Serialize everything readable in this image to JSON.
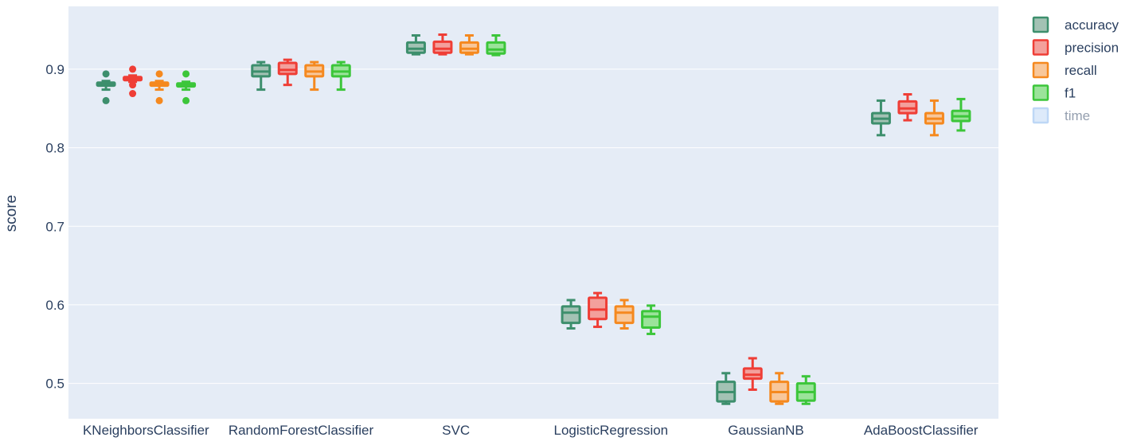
{
  "chart_data": {
    "type": "box",
    "title": "",
    "xlabel": "",
    "ylabel": "score",
    "ylim": [
      0.455,
      0.98
    ],
    "yticks": [
      0.5,
      0.6,
      0.7,
      0.8,
      0.9
    ],
    "ytick_labels": [
      "0.5",
      "0.6",
      "0.7",
      "0.8",
      "0.9"
    ],
    "grid": true,
    "legend_position": "top-right",
    "categories": [
      "KNeighborsClassifier",
      "RandomForestClassifier",
      "SVC",
      "LogisticRegression",
      "GaussianNB",
      "AdaBoostClassifier"
    ],
    "series": [
      {
        "name": "accuracy",
        "color": "#3d8f6d",
        "fill": "#a3c2b4",
        "hidden": false,
        "boxes": [
          {
            "min": 0.874,
            "q1": 0.879,
            "median": 0.881,
            "q3": 0.883,
            "max": 0.885,
            "outliers": [
              0.894,
              0.86
            ]
          },
          {
            "min": 0.874,
            "q1": 0.891,
            "median": 0.897,
            "q3": 0.905,
            "max": 0.909,
            "outliers": []
          },
          {
            "min": 0.919,
            "q1": 0.921,
            "median": 0.926,
            "q3": 0.934,
            "max": 0.943,
            "outliers": []
          },
          {
            "min": 0.57,
            "q1": 0.577,
            "median": 0.59,
            "q3": 0.598,
            "max": 0.606,
            "outliers": []
          },
          {
            "min": 0.474,
            "q1": 0.477,
            "median": 0.489,
            "q3": 0.502,
            "max": 0.513,
            "outliers": []
          },
          {
            "min": 0.816,
            "q1": 0.831,
            "median": 0.837,
            "q3": 0.844,
            "max": 0.86,
            "outliers": []
          }
        ]
      },
      {
        "name": "precision",
        "color": "#ef3e36",
        "fill": "#f3a09c",
        "hidden": false,
        "boxes": [
          {
            "min": 0.884,
            "q1": 0.886,
            "median": 0.888,
            "q3": 0.89,
            "max": 0.892,
            "outliers": [
              0.9,
              0.88,
              0.869
            ]
          },
          {
            "min": 0.88,
            "q1": 0.894,
            "median": 0.899,
            "q3": 0.908,
            "max": 0.912,
            "outliers": []
          },
          {
            "min": 0.919,
            "q1": 0.921,
            "median": 0.926,
            "q3": 0.935,
            "max": 0.944,
            "outliers": []
          },
          {
            "min": 0.572,
            "q1": 0.582,
            "median": 0.594,
            "q3": 0.609,
            "max": 0.615,
            "outliers": []
          },
          {
            "min": 0.492,
            "q1": 0.506,
            "median": 0.511,
            "q3": 0.519,
            "max": 0.532,
            "outliers": []
          },
          {
            "min": 0.835,
            "q1": 0.844,
            "median": 0.85,
            "q3": 0.859,
            "max": 0.868,
            "outliers": []
          }
        ]
      },
      {
        "name": "recall",
        "color": "#f5891f",
        "fill": "#f8c79a",
        "hidden": false,
        "boxes": [
          {
            "min": 0.874,
            "q1": 0.879,
            "median": 0.881,
            "q3": 0.883,
            "max": 0.885,
            "outliers": [
              0.894,
              0.86
            ]
          },
          {
            "min": 0.874,
            "q1": 0.891,
            "median": 0.897,
            "q3": 0.905,
            "max": 0.909,
            "outliers": []
          },
          {
            "min": 0.919,
            "q1": 0.921,
            "median": 0.926,
            "q3": 0.934,
            "max": 0.943,
            "outliers": []
          },
          {
            "min": 0.57,
            "q1": 0.577,
            "median": 0.59,
            "q3": 0.598,
            "max": 0.606,
            "outliers": []
          },
          {
            "min": 0.474,
            "q1": 0.477,
            "median": 0.489,
            "q3": 0.502,
            "max": 0.513,
            "outliers": []
          },
          {
            "min": 0.816,
            "q1": 0.831,
            "median": 0.837,
            "q3": 0.844,
            "max": 0.86,
            "outliers": []
          }
        ]
      },
      {
        "name": "f1",
        "color": "#3cc63a",
        "fill": "#9be39a",
        "hidden": false,
        "boxes": [
          {
            "min": 0.874,
            "q1": 0.878,
            "median": 0.88,
            "q3": 0.882,
            "max": 0.884,
            "outliers": [
              0.894,
              0.86
            ]
          },
          {
            "min": 0.874,
            "q1": 0.891,
            "median": 0.897,
            "q3": 0.905,
            "max": 0.909,
            "outliers": []
          },
          {
            "min": 0.918,
            "q1": 0.92,
            "median": 0.925,
            "q3": 0.934,
            "max": 0.943,
            "outliers": []
          },
          {
            "min": 0.563,
            "q1": 0.571,
            "median": 0.585,
            "q3": 0.592,
            "max": 0.599,
            "outliers": []
          },
          {
            "min": 0.474,
            "q1": 0.478,
            "median": 0.489,
            "q3": 0.5,
            "max": 0.509,
            "outliers": []
          },
          {
            "min": 0.822,
            "q1": 0.834,
            "median": 0.84,
            "q3": 0.847,
            "max": 0.862,
            "outliers": []
          }
        ]
      },
      {
        "name": "time",
        "color": "#7fb1ef",
        "fill": "#bcd6f6",
        "hidden": true,
        "boxes": []
      }
    ]
  },
  "colors": {
    "plot_background": "#e5ecf6",
    "grid": "#ffffff",
    "text": "#2a3f5f",
    "legend_hidden_text": "#aab4c2"
  }
}
